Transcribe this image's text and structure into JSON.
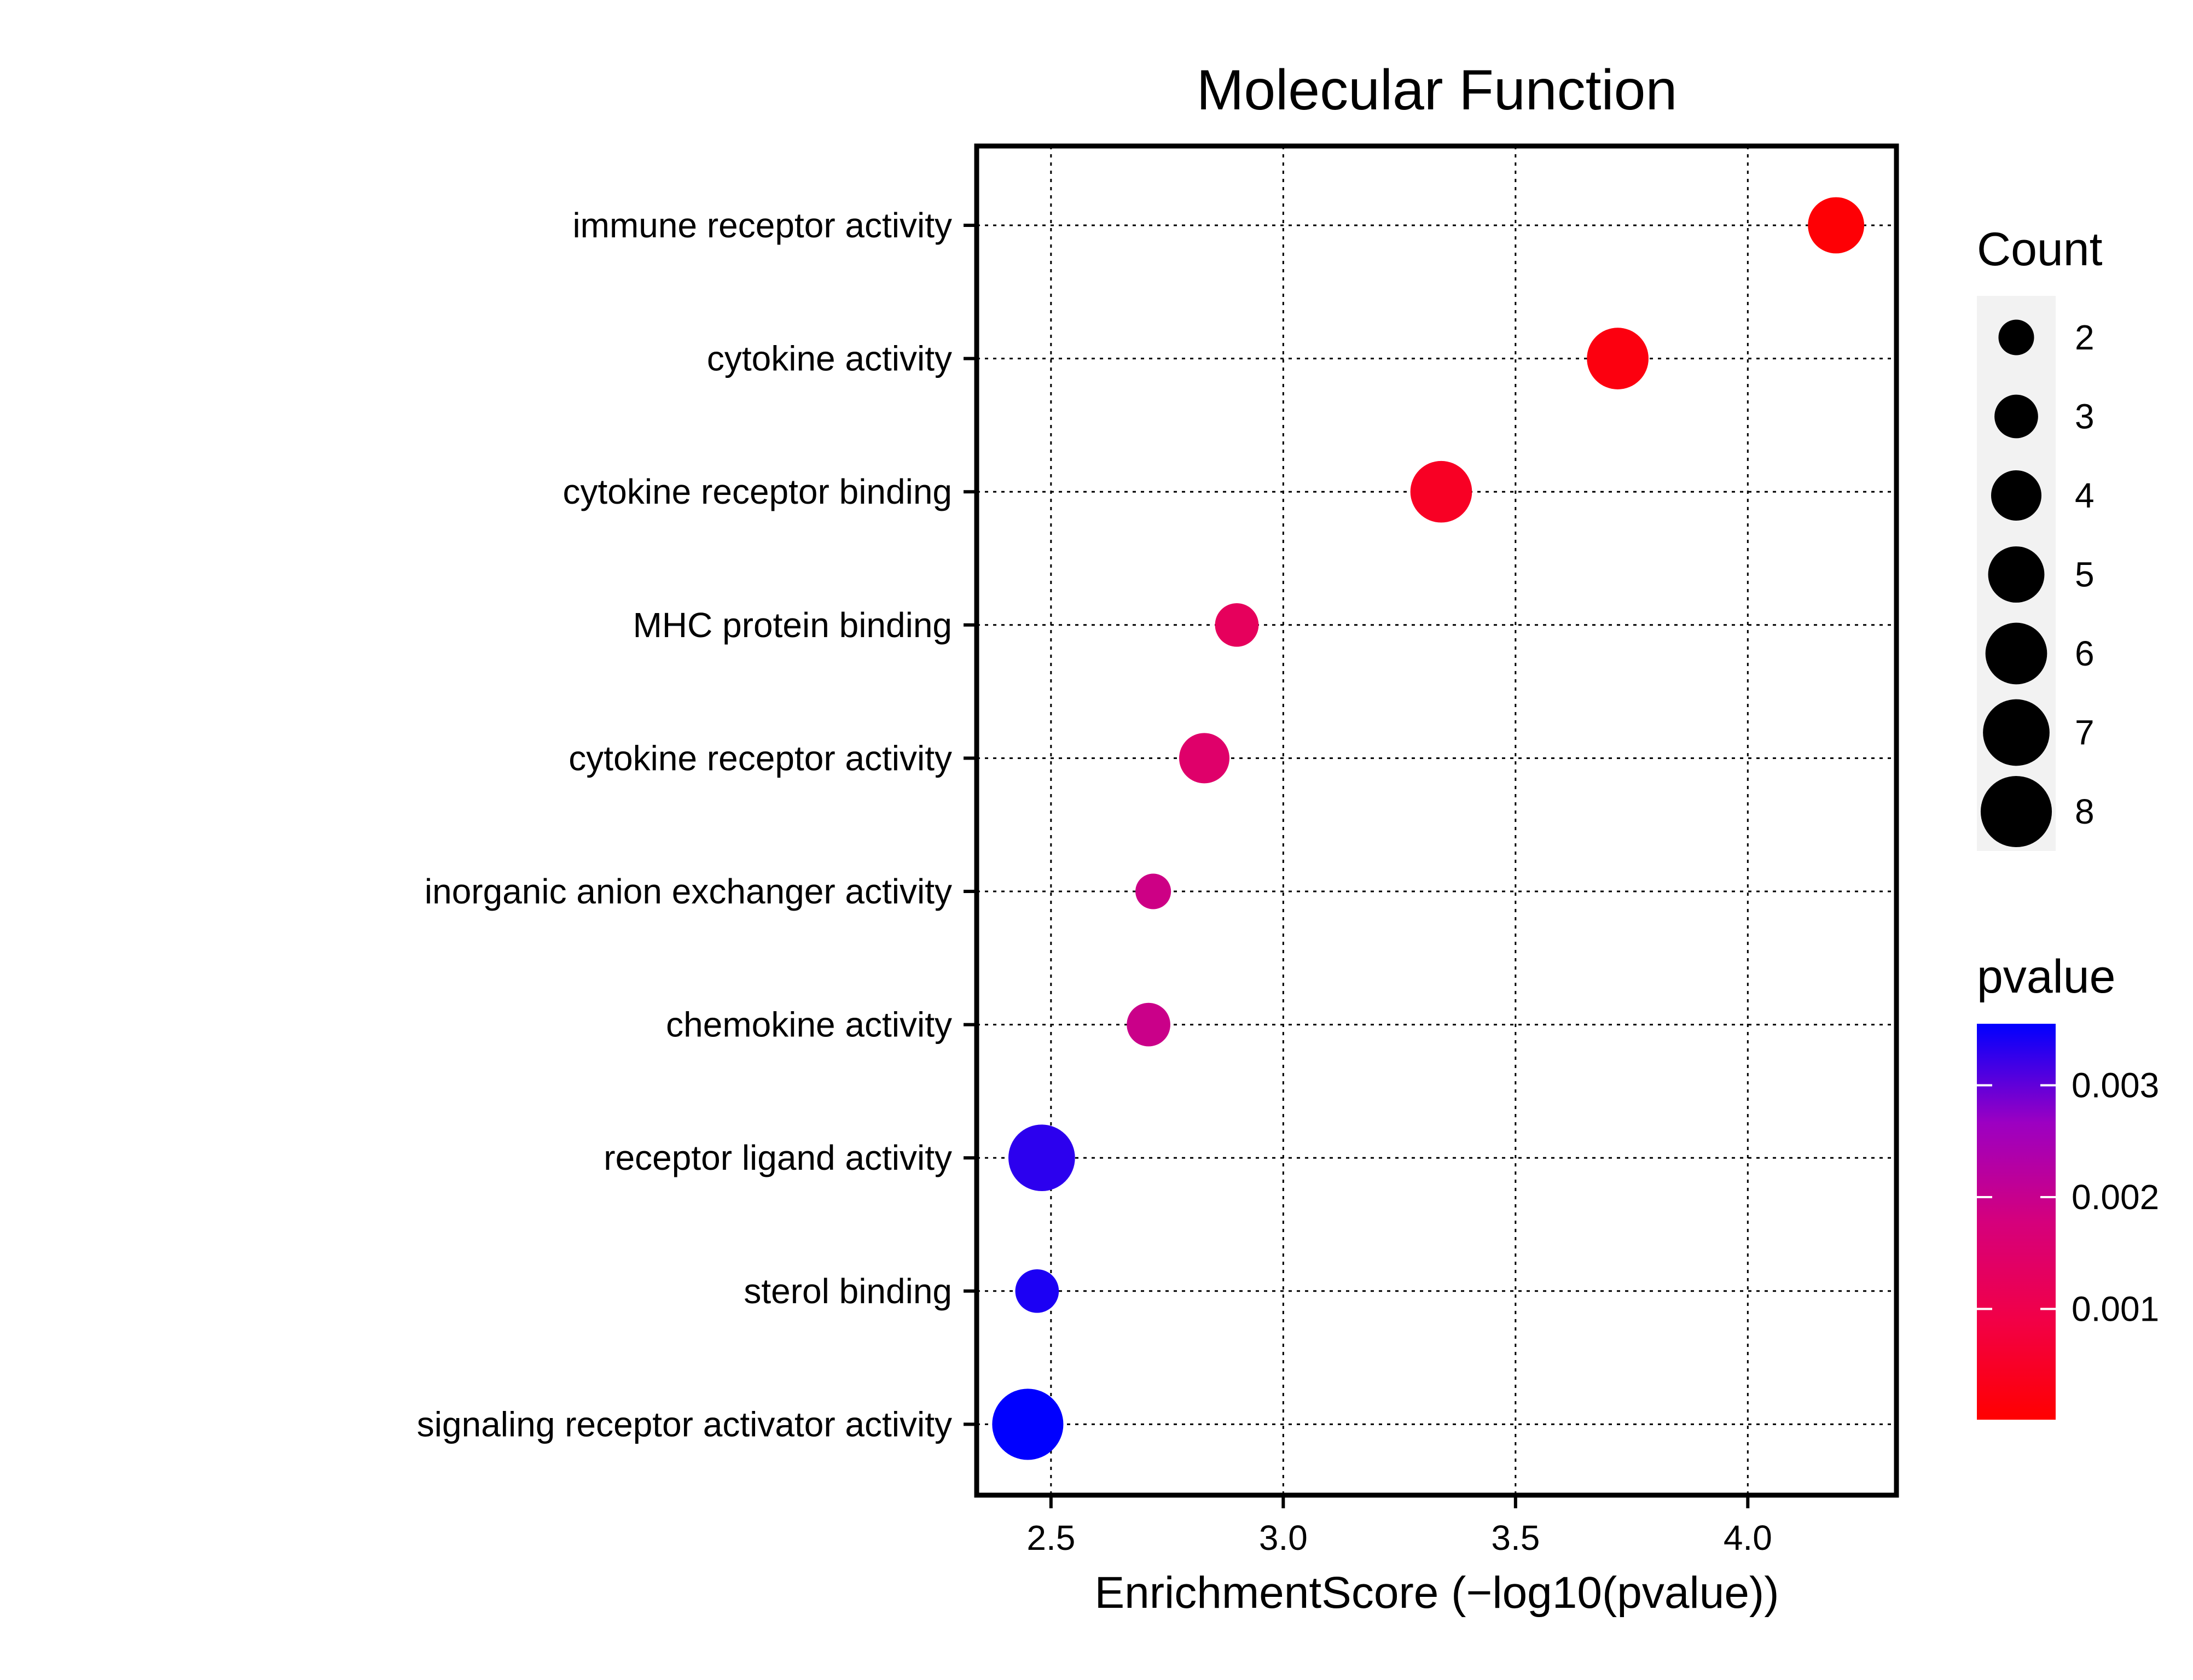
{
  "chart_data": {
    "type": "scatter",
    "title": "Molecular Function",
    "xlabel": "EnrichmentScore (−log10(pvalue))",
    "ylabel": "",
    "xlim": [
      2.34,
      4.32
    ],
    "xticks": [
      2.5,
      3.0,
      3.5,
      4.0
    ],
    "xtick_labels": [
      "2.5",
      "3.0",
      "3.5",
      "4.0"
    ],
    "grid": true,
    "categories": [
      "immune receptor activity",
      "cytokine activity",
      "cytokine receptor binding",
      "MHC protein binding",
      "cytokine receptor activity",
      "inorganic anion exchanger activity",
      "chemokine activity",
      "receptor ligand activity",
      "sterol binding",
      "signaling receptor activator activity"
    ],
    "points": [
      {
        "term": "immune receptor activity",
        "x": 4.19,
        "count": 5,
        "pvalue": 7e-05
      },
      {
        "term": "cytokine activity",
        "x": 3.72,
        "count": 6,
        "pvalue": 0.0002
      },
      {
        "term": "cytokine receptor binding",
        "x": 3.34,
        "count": 6,
        "pvalue": 0.00046
      },
      {
        "term": "MHC protein binding",
        "x": 2.9,
        "count": 3,
        "pvalue": 0.00126
      },
      {
        "term": "cytokine receptor activity",
        "x": 2.83,
        "count": 4,
        "pvalue": 0.00149
      },
      {
        "term": "inorganic anion exchanger activity",
        "x": 2.72,
        "count": 2,
        "pvalue": 0.0019
      },
      {
        "term": "chemokine activity",
        "x": 2.71,
        "count": 3,
        "pvalue": 0.00195
      },
      {
        "term": "receptor ligand activity",
        "x": 2.48,
        "count": 7,
        "pvalue": 0.0033
      },
      {
        "term": "sterol binding",
        "x": 2.47,
        "count": 3,
        "pvalue": 0.00339
      },
      {
        "term": "signaling receptor activator activity",
        "x": 2.45,
        "count": 8,
        "pvalue": 0.00355
      }
    ],
    "legend": {
      "placement": "right",
      "size": {
        "title": "Count",
        "entries": [
          {
            "label": "2",
            "value": 2
          },
          {
            "label": "3",
            "value": 3
          },
          {
            "label": "4",
            "value": 4
          },
          {
            "label": "5",
            "value": 5
          },
          {
            "label": "6",
            "value": 6
          },
          {
            "label": "7",
            "value": 7
          },
          {
            "label": "8",
            "value": 8
          }
        ]
      },
      "color": {
        "title": "pvalue",
        "range": [
          1e-05,
          0.00355
        ],
        "ticks": [
          {
            "label": "0.003",
            "value": 0.003
          },
          {
            "label": "0.002",
            "value": 0.002
          },
          {
            "label": "0.001",
            "value": 0.001
          }
        ],
        "low_color": "#FF0000",
        "high_color": "#0000FF"
      }
    }
  }
}
